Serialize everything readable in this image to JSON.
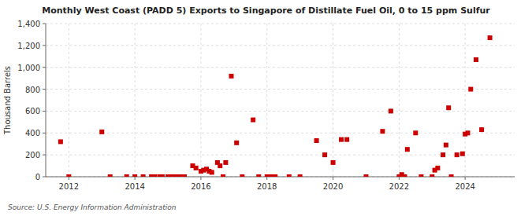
{
  "chart_data": {
    "type": "scatter",
    "title": "Monthly West Coast (PADD 5) Exports to Singapore of Distillate Fuel Oil, 0 to 15 ppm Sulfur",
    "ylabel": "Thousand Barrels",
    "source": "Source: U.S. Energy Information Administration",
    "color": "#cc0000",
    "marker": "square",
    "grid": true,
    "ylim": [
      0,
      1400
    ],
    "yticks": [
      0,
      200,
      400,
      600,
      800,
      {
        "value": 1000,
        "label": "1,000"
      },
      {
        "value": 1200,
        "label": "1,200"
      },
      {
        "value": 1400,
        "label": "1,400"
      }
    ],
    "xlim": [
      2011.3,
      2025.5
    ],
    "xticks": [
      2012,
      2014,
      2016,
      2018,
      2020,
      2022,
      2024
    ],
    "x": [
      2011.75,
      2012.0,
      2013.0,
      2013.25,
      2013.75,
      2014.0,
      2014.25,
      2014.5,
      2014.6,
      2014.75,
      2014.83,
      2015.0,
      2015.08,
      2015.17,
      2015.25,
      2015.33,
      2015.42,
      2015.5,
      2015.75,
      2015.85,
      2016.0,
      2016.08,
      2016.17,
      2016.25,
      2016.33,
      2016.5,
      2016.58,
      2016.67,
      2016.75,
      2016.92,
      2017.08,
      2017.25,
      2017.58,
      2017.75,
      2018.0,
      2018.08,
      2018.17,
      2018.25,
      2018.67,
      2019.0,
      2019.5,
      2019.75,
      2020.0,
      2020.25,
      2020.42,
      2021.0,
      2021.5,
      2021.75,
      2022.0,
      2022.08,
      2022.17,
      2022.25,
      2022.5,
      2022.67,
      2023.0,
      2023.08,
      2023.17,
      2023.33,
      2023.42,
      2023.5,
      2023.58,
      2023.75,
      2023.92,
      2024.0,
      2024.08,
      2024.17,
      2024.33,
      2024.5,
      2024.75
    ],
    "values": [
      320,
      0,
      410,
      0,
      0,
      0,
      0,
      0,
      0,
      0,
      0,
      0,
      0,
      0,
      0,
      0,
      0,
      0,
      100,
      80,
      50,
      60,
      70,
      50,
      40,
      130,
      100,
      0,
      130,
      920,
      310,
      0,
      520,
      0,
      0,
      0,
      0,
      0,
      0,
      0,
      330,
      200,
      130,
      340,
      340,
      0,
      415,
      600,
      0,
      20,
      0,
      250,
      400,
      0,
      0,
      60,
      80,
      200,
      290,
      630,
      0,
      200,
      210,
      390,
      400,
      800,
      1070,
      430,
      1270
    ]
  }
}
